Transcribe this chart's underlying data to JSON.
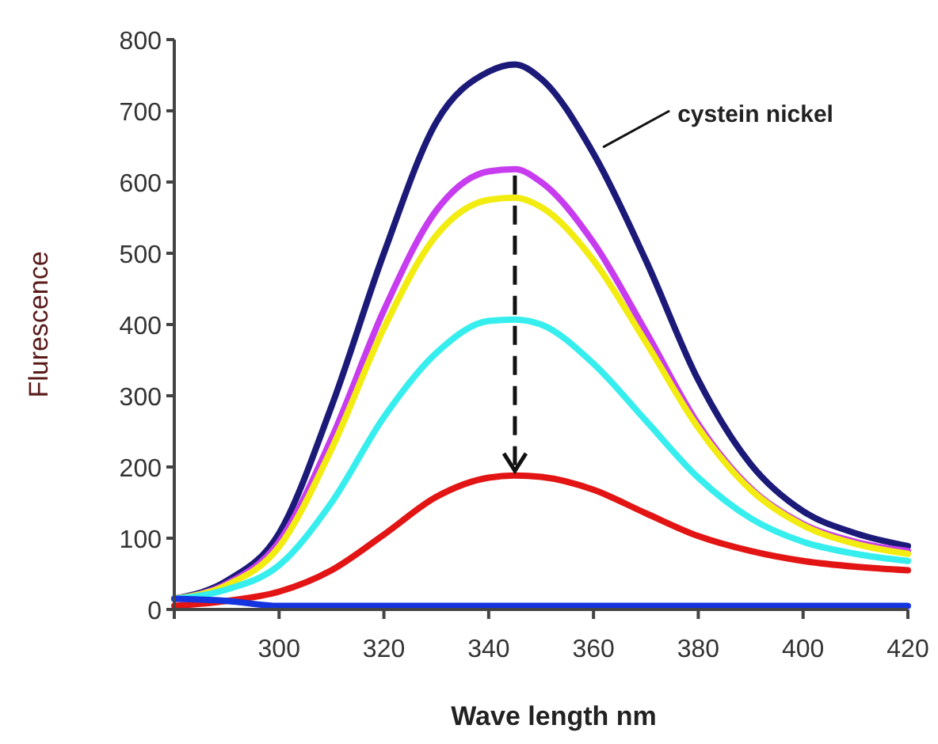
{
  "chart_data": {
    "type": "line",
    "xlabel": "Wave length nm",
    "ylabel": "Flurescence",
    "x": [
      280,
      290,
      300,
      310,
      320,
      330,
      340,
      345,
      350,
      360,
      370,
      380,
      390,
      400,
      410,
      420
    ],
    "series": [
      {
        "name": "cystein nickel",
        "color": "#1c1a78",
        "values": [
          15,
          40,
          107,
          285,
          500,
          684,
          755,
          765,
          745,
          640,
          490,
          322,
          204,
          138,
          107,
          89
        ]
      },
      {
        "color": "#c83cf0",
        "values": [
          15,
          36,
          95,
          240,
          420,
          560,
          615,
          618,
          600,
          515,
          390,
          260,
          170,
          120,
          95,
          82
        ]
      },
      {
        "color": "#f2ec10",
        "values": [
          15,
          34,
          88,
          225,
          395,
          525,
          575,
          578,
          565,
          490,
          375,
          255,
          168,
          118,
          92,
          78
        ]
      },
      {
        "color": "#36eeee",
        "values": [
          15,
          28,
          62,
          150,
          270,
          360,
          405,
          407,
          400,
          345,
          265,
          185,
          128,
          95,
          78,
          68
        ]
      },
      {
        "color": "#e31414",
        "values": [
          5,
          12,
          25,
          55,
          105,
          158,
          185,
          188,
          186,
          168,
          135,
          103,
          82,
          68,
          60,
          55
        ]
      },
      {
        "color": "#1434e0",
        "values": [
          15,
          12,
          5,
          5,
          5,
          5,
          5,
          5,
          5,
          5,
          5,
          5,
          5,
          5,
          5,
          5
        ]
      }
    ],
    "xlim": [
      280,
      420
    ],
    "xticks": [
      {
        "value": 280,
        "label": null
      },
      300,
      320,
      340,
      360,
      380,
      400,
      420
    ],
    "ylim": [
      0,
      800
    ],
    "yticks": [
      0,
      100,
      200,
      300,
      400,
      500,
      600,
      700,
      800
    ],
    "grid": false,
    "line_style": "solid",
    "marker": "none"
  }
}
